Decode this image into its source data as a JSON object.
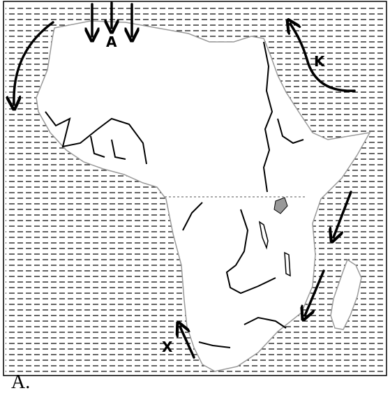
{
  "map": {
    "labels": {
      "a": "A",
      "k": "K",
      "x": "X"
    },
    "option_text": "A.",
    "colors": {
      "ink": "#000000",
      "coast": "#9a9a9a",
      "lake": "#999999",
      "background": "#ffffff"
    },
    "features": {
      "equator_line": "dashed",
      "ocean_pattern": "horizontal-dashes"
    }
  }
}
